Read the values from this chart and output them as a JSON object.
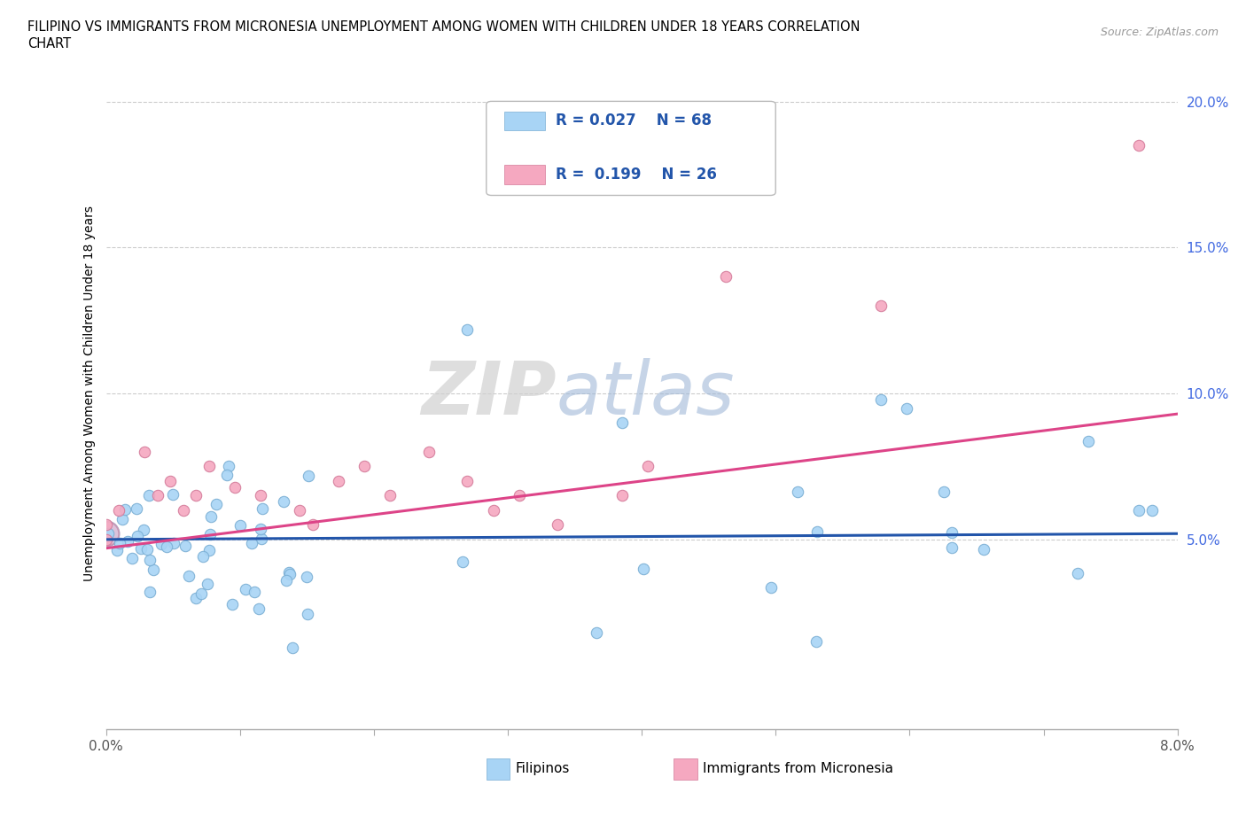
{
  "title_line1": "FILIPINO VS IMMIGRANTS FROM MICRONESIA UNEMPLOYMENT AMONG WOMEN WITH CHILDREN UNDER 18 YEARS CORRELATION",
  "title_line2": "CHART",
  "source": "Source: ZipAtlas.com",
  "ylabel": "Unemployment Among Women with Children Under 18 years",
  "blue_color": "#A8D4F5",
  "blue_edge_color": "#7BAFD4",
  "pink_color": "#F5A8C0",
  "pink_edge_color": "#D47B9A",
  "blue_line_color": "#2255AA",
  "pink_line_color": "#DD4488",
  "r_blue": 0.027,
  "n_blue": 68,
  "r_pink": 0.199,
  "n_pink": 26,
  "legend_label_blue": "Filipinos",
  "legend_label_pink": "Immigrants from Micronesia",
  "watermark": "ZIPatlas",
  "blue_line_y0": 0.05,
  "blue_line_y1": 0.052,
  "pink_line_y0": 0.047,
  "pink_line_y1": 0.093,
  "xlim": [
    0.0,
    0.083
  ],
  "ylim": [
    -0.015,
    0.215
  ],
  "yticks": [
    0.0,
    0.05,
    0.1,
    0.15,
    0.2
  ],
  "ytick_labels": [
    "",
    "5.0%",
    "10.0%",
    "15.0%",
    "20.0%"
  ]
}
